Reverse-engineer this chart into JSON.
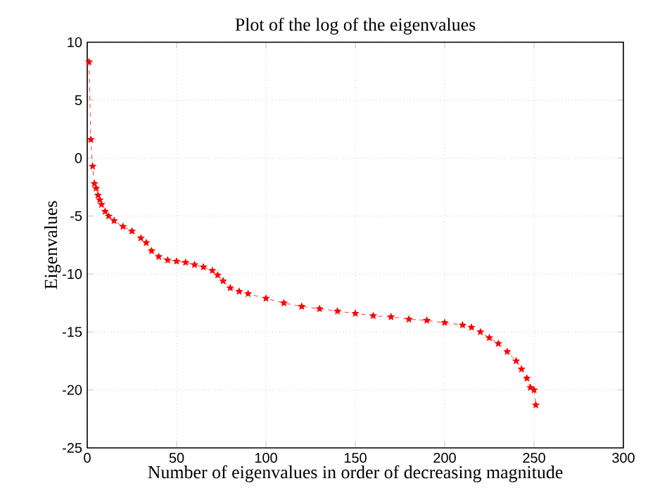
{
  "chart_data": {
    "type": "line",
    "title": "Plot of the log of the eigenvalues",
    "xlabel": "Number of eigenvalues in order of decreasing magnitude",
    "ylabel": "Eigenvalues",
    "x": [
      1,
      2,
      3,
      4,
      5,
      6,
      7,
      8,
      10,
      12,
      15,
      20,
      25,
      30,
      33,
      36,
      40,
      45,
      50,
      55,
      60,
      65,
      70,
      73,
      76,
      80,
      85,
      90,
      100,
      110,
      120,
      130,
      140,
      150,
      160,
      170,
      180,
      190,
      200,
      210,
      215,
      220,
      225,
      230,
      235,
      240,
      243,
      246,
      248,
      250,
      251
    ],
    "series": [
      {
        "color": "#ff0000",
        "values": [
          8.3,
          1.6,
          -0.7,
          -2.2,
          -2.6,
          -3.2,
          -3.6,
          -4.0,
          -4.6,
          -5.0,
          -5.4,
          -5.9,
          -6.3,
          -6.9,
          -7.3,
          -8.0,
          -8.5,
          -8.8,
          -8.9,
          -9.0,
          -9.2,
          -9.4,
          -9.7,
          -10.1,
          -10.6,
          -11.2,
          -11.5,
          -11.7,
          -12.1,
          -12.5,
          -12.8,
          -13.0,
          -13.2,
          -13.4,
          -13.6,
          -13.7,
          -13.9,
          -14.0,
          -14.2,
          -14.4,
          -14.6,
          -15.0,
          -15.5,
          -16.0,
          -16.7,
          -17.5,
          -18.2,
          -19.0,
          -19.8,
          -20.0,
          -21.3
        ]
      }
    ],
    "xlim": [
      0,
      300
    ],
    "ylim": [
      -25,
      10
    ],
    "xticks": [
      0,
      50,
      100,
      150,
      200,
      250,
      300
    ],
    "yticks": [
      -25,
      -20,
      -15,
      -10,
      -5,
      0,
      5,
      10
    ],
    "grid": true,
    "marker": "star",
    "line_style": "dashed"
  }
}
